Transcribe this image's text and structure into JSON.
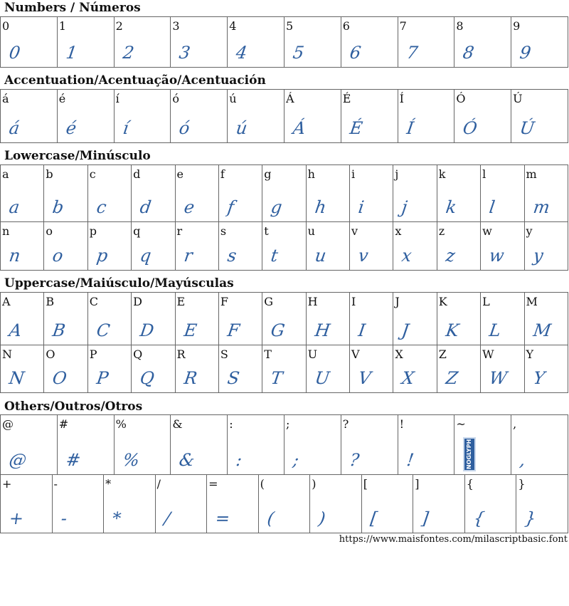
{
  "sections": [
    {
      "title": "Numbers / Números",
      "rows": [
        [
          "0",
          "1",
          "2",
          "3",
          "4",
          "5",
          "6",
          "7",
          "8",
          "9"
        ]
      ]
    },
    {
      "title": "Accentuation/Acentuação/Acentuación",
      "rows": [
        [
          "á",
          "é",
          "í",
          "ó",
          "ú",
          "Á",
          "É",
          "Í",
          "Ó",
          "Ú"
        ]
      ]
    },
    {
      "title": "Lowercase/Minúsculo",
      "rows": [
        [
          "a",
          "b",
          "c",
          "d",
          "e",
          "f",
          "g",
          "h",
          "i",
          "j",
          "k",
          "l",
          "m"
        ],
        [
          "n",
          "o",
          "p",
          "q",
          "r",
          "s",
          "t",
          "u",
          "v",
          "x",
          "z",
          "w",
          "y"
        ]
      ]
    },
    {
      "title": "Uppercase/Maiúsculo/Mayúsculas",
      "rows": [
        [
          "A",
          "B",
          "C",
          "D",
          "E",
          "F",
          "G",
          "H",
          "I",
          "J",
          "K",
          "L",
          "M"
        ],
        [
          "N",
          "O",
          "P",
          "Q",
          "R",
          "S",
          "T",
          "U",
          "V",
          "X",
          "Z",
          "W",
          "Y"
        ]
      ]
    },
    {
      "title": "Others/Outros/Otros",
      "rows": [
        [
          "@",
          "#",
          "%",
          "&",
          ":",
          ";",
          "?",
          "!",
          "~",
          ","
        ],
        [
          "+",
          "-",
          "*",
          "/",
          "=",
          "(",
          ")",
          "[",
          "]",
          "{",
          "}"
        ]
      ]
    }
  ],
  "no_glyph_chars": [
    "~"
  ],
  "no_glyph_label": "NOGLYPH",
  "footer_url": "https://www.maisfontes.com/milascriptbasic.font",
  "colors": {
    "glyph": "#2f5f9f",
    "border": "#666666"
  }
}
